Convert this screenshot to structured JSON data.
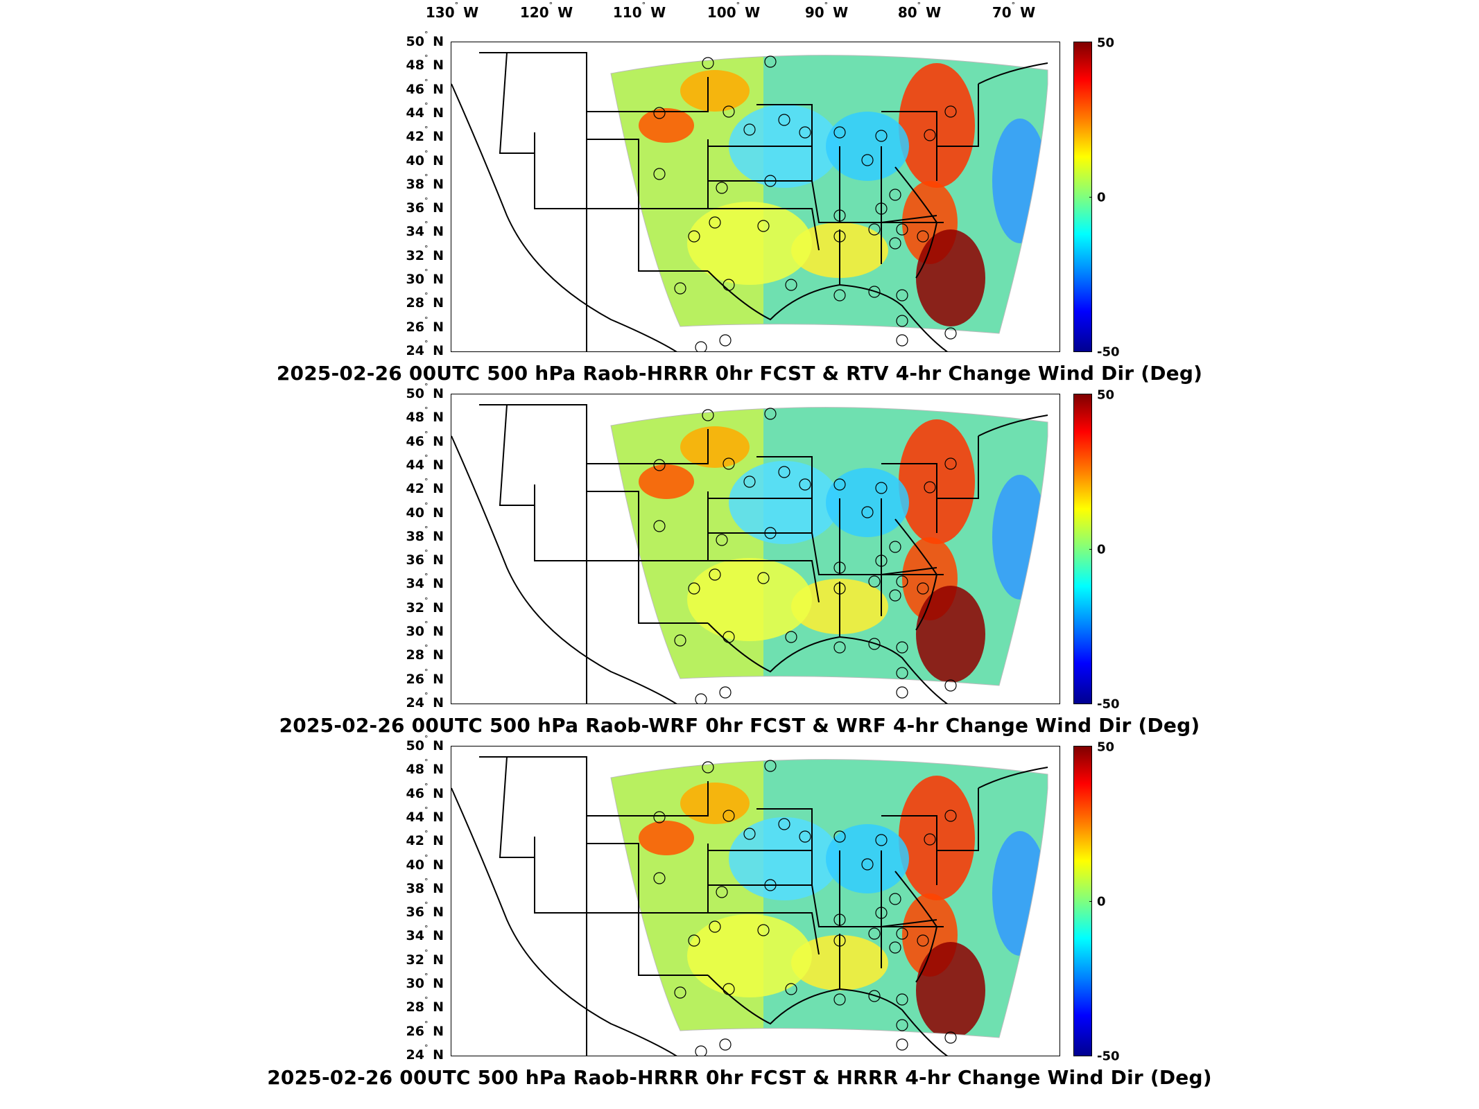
{
  "longitude_labels": [
    {
      "deg": "130",
      "hemi": "W"
    },
    {
      "deg": "120",
      "hemi": "W"
    },
    {
      "deg": "110",
      "hemi": "W"
    },
    {
      "deg": "100",
      "hemi": "W"
    },
    {
      "deg": "90",
      "hemi": "W"
    },
    {
      "deg": "80",
      "hemi": "W"
    },
    {
      "deg": "70",
      "hemi": "W"
    }
  ],
  "latitude_labels": [
    "50",
    "48",
    "46",
    "44",
    "42",
    "40",
    "38",
    "36",
    "34",
    "32",
    "30",
    "28",
    "26",
    "24"
  ],
  "lat_hemi": "N",
  "colorbar": {
    "max": "50",
    "mid": "0",
    "min": "-50"
  },
  "panels": [
    {
      "title": "2025-02-26 00UTC 500 hPa Raob-HRRR 0hr FCST & RTV 4-hr Change Wind Dir (Deg)"
    },
    {
      "title": "2025-02-26 00UTC 500 hPa Raob-WRF 0hr FCST & WRF 4-hr Change Wind Dir (Deg)"
    },
    {
      "title": "2025-02-26 00UTC 500 hPa Raob-HRRR 0hr FCST & HRRR 4-hr Change Wind Dir (Deg)"
    }
  ],
  "colors": {
    "cbar_high": "#7f0000",
    "cbar_mid": "#7fff7f",
    "cbar_low": "#00008f"
  }
}
